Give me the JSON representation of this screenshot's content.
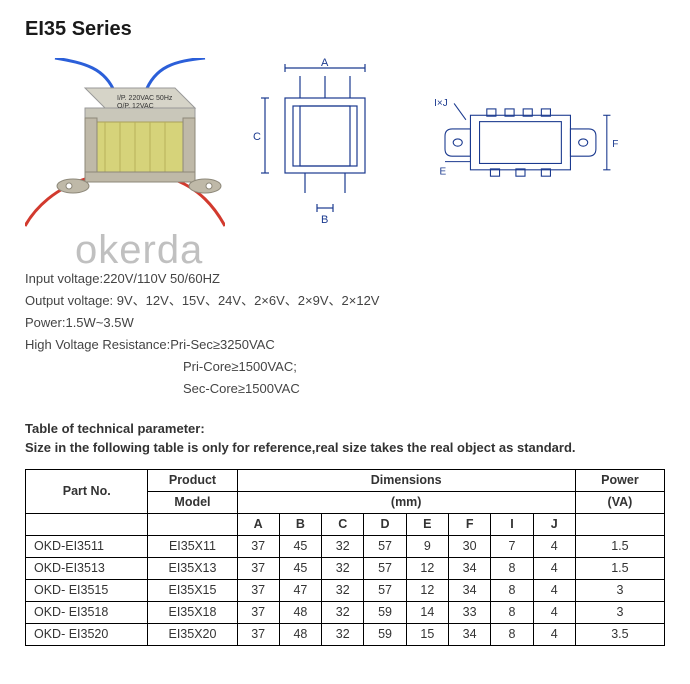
{
  "title": "EI35 Series",
  "watermark": "okerda",
  "product_label": {
    "line1": "I/P. 220VAC 50Hz",
    "line2": "O/P. 12VAC"
  },
  "diagram_labels": {
    "A": "A",
    "B": "B",
    "C": "C",
    "E": "E",
    "F": "F",
    "IJ": "I×J"
  },
  "specs": {
    "input_voltage_label": "Input voltage:",
    "input_voltage": "220V/110V   50/60HZ",
    "output_voltage_label": "Output voltage:",
    "output_voltage": " 9V、12V、15V、24V、2×6V、2×9V、2×12V",
    "power_label": "Power:",
    "power": "1.5W~3.5W",
    "hvr_label": "High Voltage Resistance:",
    "hvr1": "Pri-Sec≥3250VAC",
    "hvr2": "Pri-Core≥1500VAC;",
    "hvr3": "Sec-Core≥1500VAC"
  },
  "table_heading": "Table of technical parameter:",
  "table_note": "Size in the following table is only for reference,real size takes the real object as standard.",
  "table": {
    "headers": {
      "partno": "Part No.",
      "model_l1": "Product",
      "model_l2": "Model",
      "dimensions_l1": "Dimensions",
      "dimensions_l2": "(mm)",
      "power_l1": "Power",
      "power_l2": "(VA)",
      "dims": [
        "A",
        "B",
        "C",
        "D",
        "E",
        "F",
        "I",
        "J"
      ]
    },
    "rows": [
      {
        "partno": "OKD-EI3511",
        "model": "EI35X11",
        "A": "37",
        "B": "45",
        "C": "32",
        "D": "57",
        "E": "9",
        "F": "30",
        "I": "7",
        "J": "4",
        "power": "1.5"
      },
      {
        "partno": "OKD-EI3513",
        "model": "EI35X13",
        "A": "37",
        "B": "45",
        "C": "32",
        "D": "57",
        "E": "12",
        "F": "34",
        "I": "8",
        "J": "4",
        "power": "1.5"
      },
      {
        "partno": "OKD- EI3515",
        "model": "EI35X15",
        "A": "37",
        "B": "47",
        "C": "32",
        "D": "57",
        "E": "12",
        "F": "34",
        "I": "8",
        "J": "4",
        "power": "3"
      },
      {
        "partno": "OKD- EI3518",
        "model": "EI35X18",
        "A": "37",
        "B": "48",
        "C": "32",
        "D": "59",
        "E": "14",
        "F": "33",
        "I": "8",
        "J": "4",
        "power": "3"
      },
      {
        "partno": "OKD- EI3520",
        "model": "EI35X20",
        "A": "37",
        "B": "48",
        "C": "32",
        "D": "59",
        "E": "15",
        "F": "34",
        "I": "8",
        "J": "4",
        "power": "3.5"
      }
    ]
  },
  "colors": {
    "wire_blue": "#2b5fd9",
    "wire_red": "#d23a2e",
    "metal": "#bfb9a8",
    "coil": "#d6d37a",
    "bracket": "#a7a29a",
    "diagram_stroke": "#1b3a8f",
    "text": "#333333"
  }
}
